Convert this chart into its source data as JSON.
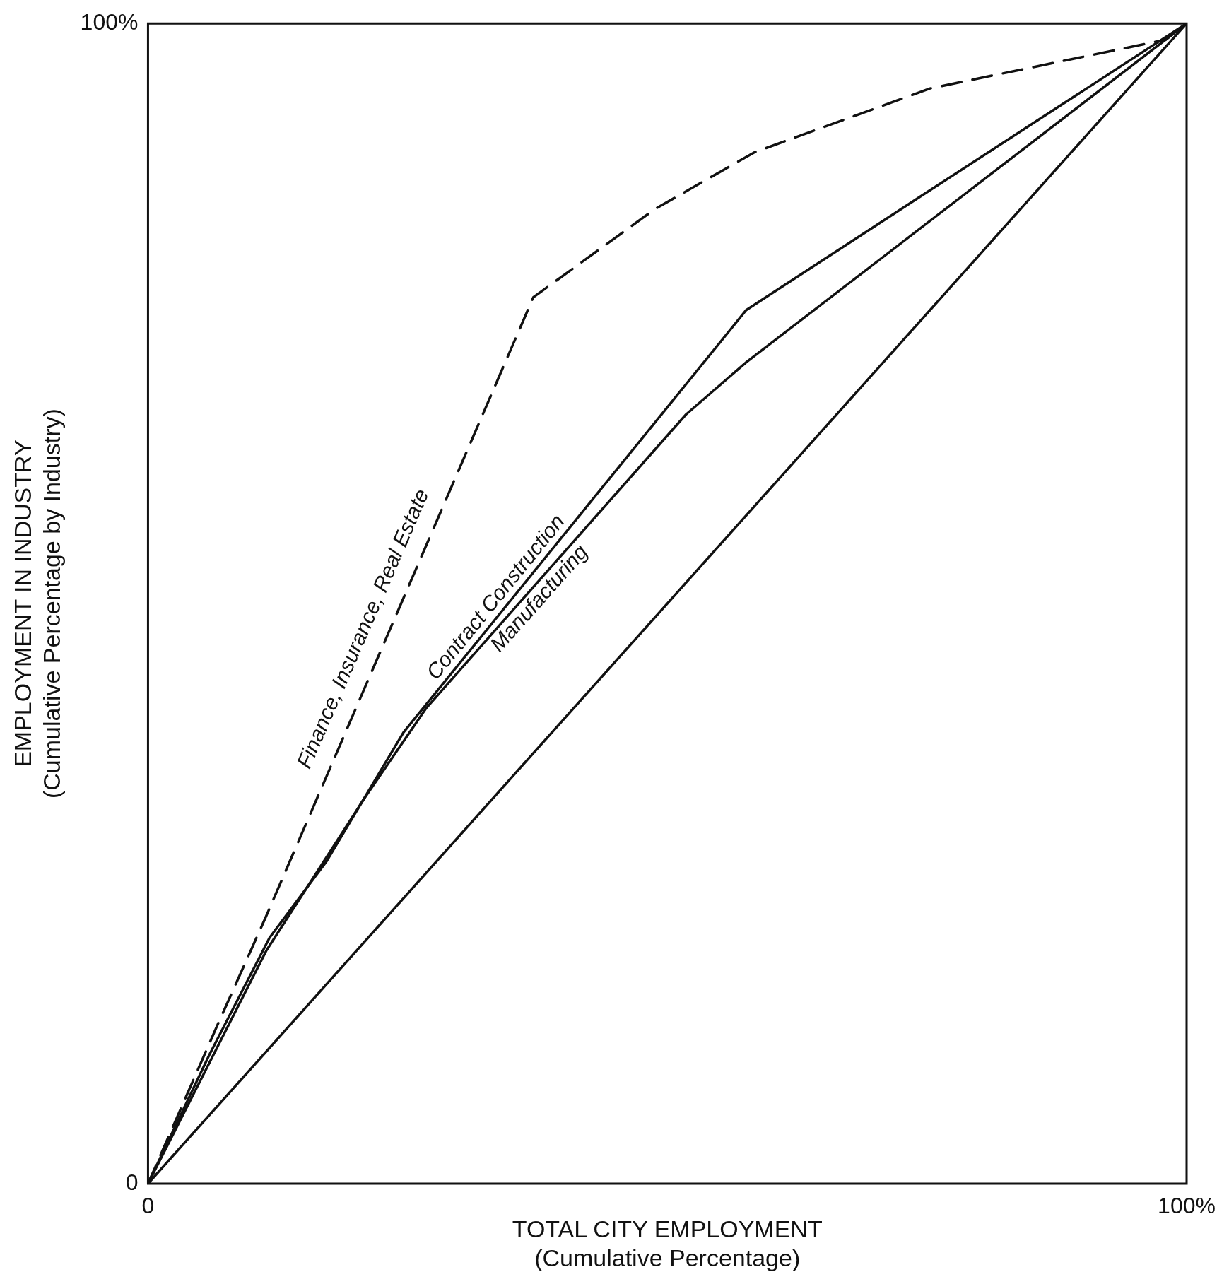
{
  "chart_data": {
    "type": "line",
    "xlabel": "TOTAL CITY EMPLOYMENT\n(Cumulative Percentage)",
    "ylabel": "EMPLOYMENT IN INDUSTRY\n(Cumulative Percentage by Industry)",
    "xlim": [
      0,
      100
    ],
    "ylim": [
      0,
      100
    ],
    "xticks": [
      {
        "value": 0,
        "label": "0"
      },
      {
        "value": 100,
        "label": "100%"
      }
    ],
    "yticks": [
      {
        "value": 0,
        "label": "0"
      },
      {
        "value": 100,
        "label": "100%"
      }
    ],
    "legend": false,
    "marker": "none",
    "series": [
      {
        "name": "Finance, Insurance, Real Estate",
        "color": "#111111",
        "line_style": "dashed",
        "x": [
          0,
          6.6,
          11.3,
          37.1,
          48.8,
          58.4,
          75.3,
          98,
          100
        ],
        "values": [
          0,
          13.5,
          22.9,
          76.4,
          84.0,
          88.9,
          94.4,
          98.6,
          100
        ]
      },
      {
        "name": "Contract Construction",
        "color": "#111111",
        "line_style": "solid",
        "x": [
          0,
          5.9,
          11.7,
          17.2,
          24.6,
          57.6,
          75.6,
          100
        ],
        "values": [
          0,
          11.1,
          21.2,
          27.8,
          38.9,
          75.3,
          85.8,
          100
        ]
      },
      {
        "name": "Manufacturing",
        "color": "#111111",
        "line_style": "solid",
        "x": [
          0,
          11.4,
          20.9,
          26.8,
          51.8,
          57.6,
          100
        ],
        "values": [
          0,
          20.1,
          33.3,
          41.0,
          66.3,
          70.8,
          100
        ]
      },
      {
        "color": "#111111",
        "line_style": "solid",
        "x": [
          0,
          100
        ],
        "values": [
          0,
          100
        ]
      }
    ]
  }
}
